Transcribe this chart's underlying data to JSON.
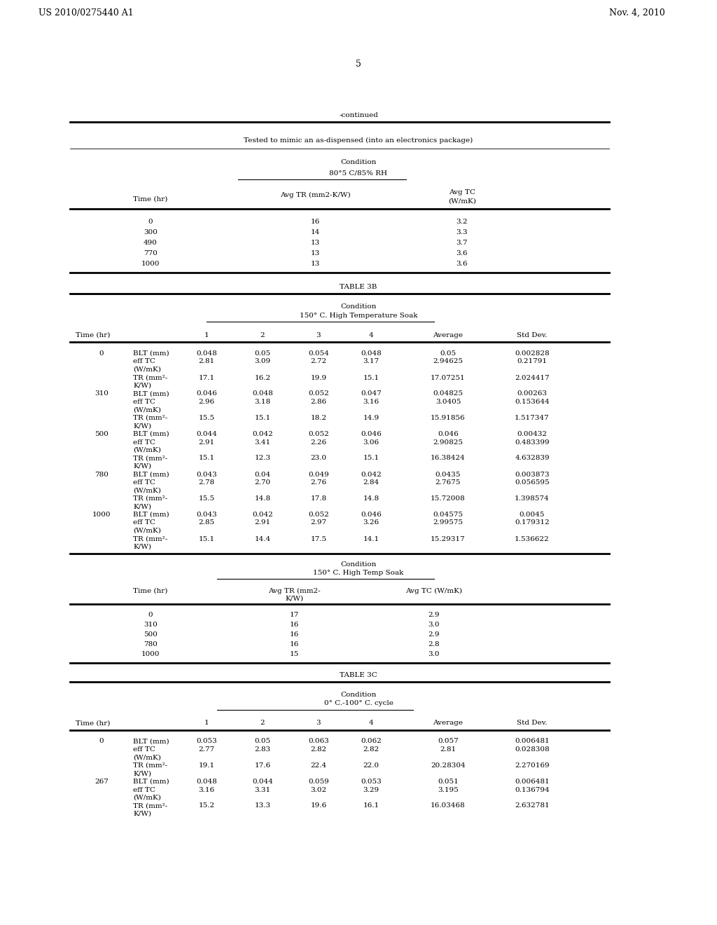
{
  "patent_number": "US 2010/0275440 A1",
  "date": "Nov. 4, 2010",
  "page_number": "5",
  "continued_label": "-continued",
  "top_note": "Tested to mimic an as-dispensed (into an electronics package)",
  "condition_1_title": "Condition",
  "condition_1_subtitle": "80°5 C/85% RH",
  "top_table_data": [
    [
      "0",
      "16",
      "3.2"
    ],
    [
      "300",
      "14",
      "3.3"
    ],
    [
      "490",
      "13",
      "3.7"
    ],
    [
      "770",
      "13",
      "3.6"
    ],
    [
      "1000",
      "13",
      "3.6"
    ]
  ],
  "table3b_label": "TABLE 3B",
  "condition_3b_title": "Condition",
  "condition_3b_subtitle": "150° C. High Temperature Soak",
  "table3b_data": [
    [
      "0",
      "BLT (mm)",
      "0.048",
      "0.05",
      "0.054",
      "0.048",
      "0.05",
      "0.002828"
    ],
    [
      "",
      "eff TC",
      "2.81",
      "3.09",
      "2.72",
      "3.17",
      "2.94625",
      "0.21791"
    ],
    [
      "",
      "(W/mK)",
      "",
      "",
      "",
      "",
      "",
      ""
    ],
    [
      "",
      "TR (mm²-",
      "17.1",
      "16.2",
      "19.9",
      "15.1",
      "17.07251",
      "2.024417"
    ],
    [
      "",
      "K/W)",
      "",
      "",
      "",
      "",
      "",
      ""
    ],
    [
      "310",
      "BLT (mm)",
      "0.046",
      "0.048",
      "0.052",
      "0.047",
      "0.04825",
      "0.00263"
    ],
    [
      "",
      "eff TC",
      "2.96",
      "3.18",
      "2.86",
      "3.16",
      "3.0405",
      "0.153644"
    ],
    [
      "",
      "(W/mK)",
      "",
      "",
      "",
      "",
      "",
      ""
    ],
    [
      "",
      "TR (mm²-",
      "15.5",
      "15.1",
      "18.2",
      "14.9",
      "15.91856",
      "1.517347"
    ],
    [
      "",
      "K/W)",
      "",
      "",
      "",
      "",
      "",
      ""
    ],
    [
      "500",
      "BLT (mm)",
      "0.044",
      "0.042",
      "0.052",
      "0.046",
      "0.046",
      "0.00432"
    ],
    [
      "",
      "eff TC",
      "2.91",
      "3.41",
      "2.26",
      "3.06",
      "2.90825",
      "0.483399"
    ],
    [
      "",
      "(W/mK)",
      "",
      "",
      "",
      "",
      "",
      ""
    ],
    [
      "",
      "TR (mm²-",
      "15.1",
      "12.3",
      "23.0",
      "15.1",
      "16.38424",
      "4.632839"
    ],
    [
      "",
      "K/W)",
      "",
      "",
      "",
      "",
      "",
      ""
    ],
    [
      "780",
      "BLT (mm)",
      "0.043",
      "0.04",
      "0.049",
      "0.042",
      "0.0435",
      "0.003873"
    ],
    [
      "",
      "eff TC",
      "2.78",
      "2.70",
      "2.76",
      "2.84",
      "2.7675",
      "0.056595"
    ],
    [
      "",
      "(W/mK)",
      "",
      "",
      "",
      "",
      "",
      ""
    ],
    [
      "",
      "TR (mm²-",
      "15.5",
      "14.8",
      "17.8",
      "14.8",
      "15.72008",
      "1.398574"
    ],
    [
      "",
      "K/W)",
      "",
      "",
      "",
      "",
      "",
      ""
    ],
    [
      "1000",
      "BLT (mm)",
      "0.043",
      "0.042",
      "0.052",
      "0.046",
      "0.04575",
      "0.0045"
    ],
    [
      "",
      "eff TC",
      "2.85",
      "2.91",
      "2.97",
      "3.26",
      "2.99575",
      "0.179312"
    ],
    [
      "",
      "(W/mK)",
      "",
      "",
      "",
      "",
      "",
      ""
    ],
    [
      "",
      "TR (mm²-",
      "15.1",
      "14.4",
      "17.5",
      "14.1",
      "15.29317",
      "1.536622"
    ],
    [
      "",
      "K/W)",
      "",
      "",
      "",
      "",
      "",
      ""
    ]
  ],
  "condition_3b_avg_title": "Condition",
  "condition_3b_avg_subtitle": "150° C. High Temp Soak",
  "avg_table_data": [
    [
      "0",
      "17",
      "2.9"
    ],
    [
      "310",
      "16",
      "3.0"
    ],
    [
      "500",
      "16",
      "2.9"
    ],
    [
      "780",
      "16",
      "2.8"
    ],
    [
      "1000",
      "15",
      "3.0"
    ]
  ],
  "table3c_label": "TABLE 3C",
  "condition_3c_title": "Condition",
  "condition_3c_subtitle": "0° C.-100° C. cycle",
  "table3c_data": [
    [
      "0",
      "BLT (mm)",
      "0.053",
      "0.05",
      "0.063",
      "0.062",
      "0.057",
      "0.006481"
    ],
    [
      "",
      "eff TC",
      "2.77",
      "2.83",
      "2.82",
      "2.82",
      "2.81",
      "0.028308"
    ],
    [
      "",
      "(W/mK)",
      "",
      "",
      "",
      "",
      "",
      ""
    ],
    [
      "",
      "TR (mm²-",
      "19.1",
      "17.6",
      "22.4",
      "22.0",
      "20.28304",
      "2.270169"
    ],
    [
      "",
      "K/W)",
      "",
      "",
      "",
      "",
      "",
      ""
    ],
    [
      "267",
      "BLT (mm)",
      "0.048",
      "0.044",
      "0.059",
      "0.053",
      "0.051",
      "0.006481"
    ],
    [
      "",
      "eff TC",
      "3.16",
      "3.31",
      "3.02",
      "3.29",
      "3.195",
      "0.136794"
    ],
    [
      "",
      "(W/mK)",
      "",
      "",
      "",
      "",
      "",
      ""
    ],
    [
      "",
      "TR (mm²-",
      "15.2",
      "13.3",
      "19.6",
      "16.1",
      "16.03468",
      "2.632781"
    ],
    [
      "",
      "K/W)",
      "",
      "",
      "",
      "",
      "",
      ""
    ]
  ]
}
